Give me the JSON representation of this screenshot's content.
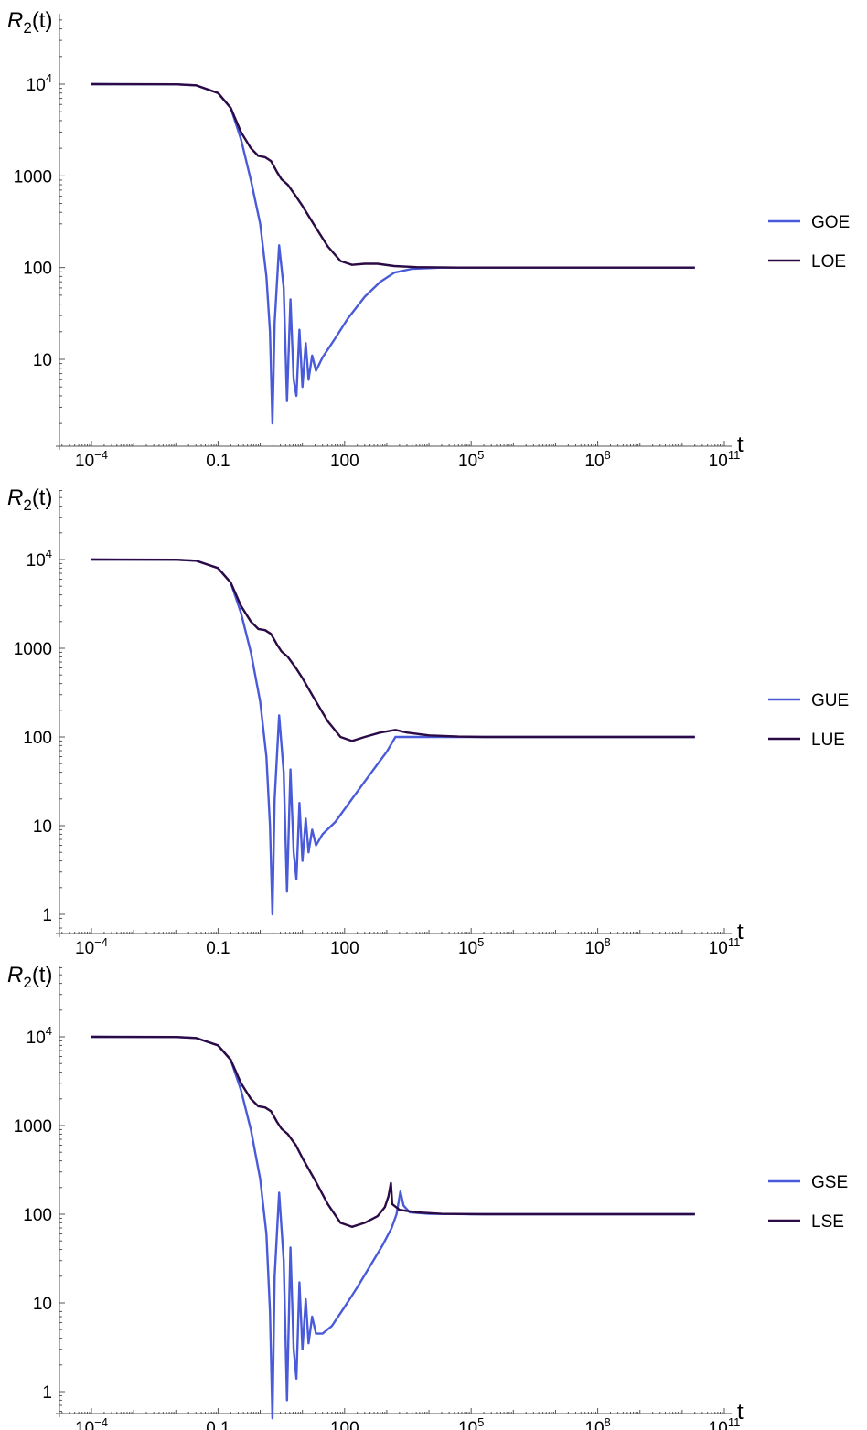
{
  "colors": {
    "g_series": "#4a5bd9",
    "l_series": "#2b0a45",
    "axis": "#555555"
  },
  "chart_data": [
    {
      "type": "line",
      "scale": {
        "x": "log",
        "y": "log"
      },
      "ylabel": "R2(t)",
      "ylabel_parts": {
        "letter": "R",
        "sub": "2",
        "arg": "(t)"
      },
      "xlabel": "t",
      "x_ticks": [
        {
          "value": 0.0001,
          "base": "10",
          "exp": "−4"
        },
        {
          "value": 0.1,
          "text": "0.1"
        },
        {
          "value": 100,
          "text": "100"
        },
        {
          "value": 100000,
          "base": "10",
          "exp": "5"
        },
        {
          "value": 100000000,
          "base": "10",
          "exp": "8"
        },
        {
          "value": 100000000000,
          "base": "10",
          "exp": "11"
        }
      ],
      "y_ticks": [
        {
          "value": 10,
          "text": "10"
        },
        {
          "value": 100,
          "text": "100"
        },
        {
          "value": 1000,
          "text": "1000"
        },
        {
          "value": 10000,
          "base": "10",
          "exp": "4"
        }
      ],
      "xlim": [
        2e-05,
        100000000000
      ],
      "ylim": [
        1.6,
        25000
      ],
      "legend_position": "right",
      "series": [
        {
          "name": "GOE",
          "color": "#4a5bd9",
          "points": [
            [
              0.0001,
              10000
            ],
            [
              0.01,
              9950
            ],
            [
              0.03,
              9700
            ],
            [
              0.1,
              8000
            ],
            [
              0.2,
              5500
            ],
            [
              0.35,
              2500
            ],
            [
              0.6,
              900
            ],
            [
              1.0,
              300
            ],
            [
              1.4,
              80
            ],
            [
              1.7,
              20
            ],
            [
              1.95,
              2
            ],
            [
              2.2,
              25
            ],
            [
              2.8,
              175
            ],
            [
              3.6,
              60
            ],
            [
              4.3,
              3.5
            ],
            [
              5.2,
              45
            ],
            [
              6.2,
              6
            ],
            [
              7.2,
              4
            ],
            [
              8.5,
              21
            ],
            [
              10,
              5
            ],
            [
              12,
              15
            ],
            [
              14,
              6
            ],
            [
              17,
              11
            ],
            [
              21,
              7.5
            ],
            [
              30,
              10.5
            ],
            [
              60,
              17
            ],
            [
              120,
              28
            ],
            [
              300,
              48
            ],
            [
              700,
              70
            ],
            [
              1500,
              88
            ],
            [
              4000,
              97
            ],
            [
              20000,
              100
            ],
            [
              1000000,
              100
            ],
            [
              20000000000,
              100
            ]
          ]
        },
        {
          "name": "LOE",
          "color": "#2b0a45",
          "points": [
            [
              0.0001,
              10000
            ],
            [
              0.01,
              9950
            ],
            [
              0.03,
              9700
            ],
            [
              0.1,
              8000
            ],
            [
              0.2,
              5500
            ],
            [
              0.35,
              3000
            ],
            [
              0.6,
              2000
            ],
            [
              0.9,
              1650
            ],
            [
              1.3,
              1600
            ],
            [
              1.8,
              1450
            ],
            [
              2.5,
              1100
            ],
            [
              3.2,
              920
            ],
            [
              4.5,
              800
            ],
            [
              7,
              600
            ],
            [
              10,
              470
            ],
            [
              20,
              280
            ],
            [
              40,
              170
            ],
            [
              80,
              118
            ],
            [
              150,
              107
            ],
            [
              300,
              110
            ],
            [
              600,
              110
            ],
            [
              1500,
              104
            ],
            [
              5000,
              101
            ],
            [
              50000,
              100
            ],
            [
              20000000000,
              100
            ]
          ]
        }
      ]
    },
    {
      "type": "line",
      "scale": {
        "x": "log",
        "y": "log"
      },
      "ylabel": "R2(t)",
      "ylabel_parts": {
        "letter": "R",
        "sub": "2",
        "arg": "(t)"
      },
      "xlabel": "t",
      "x_ticks": [
        {
          "value": 0.0001,
          "base": "10",
          "exp": "−4"
        },
        {
          "value": 0.1,
          "text": "0.1"
        },
        {
          "value": 100,
          "text": "100"
        },
        {
          "value": 100000,
          "base": "10",
          "exp": "5"
        },
        {
          "value": 100000000,
          "base": "10",
          "exp": "8"
        },
        {
          "value": 100000000000,
          "base": "10",
          "exp": "11"
        }
      ],
      "y_ticks": [
        {
          "value": 1,
          "text": "1"
        },
        {
          "value": 10,
          "text": "10"
        },
        {
          "value": 100,
          "text": "100"
        },
        {
          "value": 1000,
          "text": "1000"
        },
        {
          "value": 10000,
          "base": "10",
          "exp": "4"
        }
      ],
      "xlim": [
        2e-05,
        100000000000
      ],
      "ylim": [
        0.6,
        30000
      ],
      "legend_position": "right",
      "series": [
        {
          "name": "GUE",
          "color": "#4a5bd9",
          "points": [
            [
              0.0001,
              10000
            ],
            [
              0.01,
              9950
            ],
            [
              0.03,
              9700
            ],
            [
              0.1,
              8000
            ],
            [
              0.2,
              5500
            ],
            [
              0.35,
              2500
            ],
            [
              0.6,
              900
            ],
            [
              1.0,
              250
            ],
            [
              1.4,
              60
            ],
            [
              1.7,
              10
            ],
            [
              1.95,
              1
            ],
            [
              2.2,
              20
            ],
            [
              2.8,
              175
            ],
            [
              3.6,
              40
            ],
            [
              4.3,
              1.8
            ],
            [
              5.2,
              43
            ],
            [
              6.2,
              5
            ],
            [
              7.2,
              2.5
            ],
            [
              8.5,
              18
            ],
            [
              10,
              4
            ],
            [
              12,
              12
            ],
            [
              14,
              5
            ],
            [
              17,
              9
            ],
            [
              21,
              6
            ],
            [
              30,
              8
            ],
            [
              60,
              11
            ],
            [
              150,
              20
            ],
            [
              400,
              38
            ],
            [
              1000,
              68
            ],
            [
              1600,
              100
            ],
            [
              20000000000,
              100
            ]
          ]
        },
        {
          "name": "LUE",
          "color": "#2b0a45",
          "points": [
            [
              0.0001,
              10000
            ],
            [
              0.01,
              9950
            ],
            [
              0.03,
              9700
            ],
            [
              0.1,
              8000
            ],
            [
              0.2,
              5500
            ],
            [
              0.35,
              3000
            ],
            [
              0.6,
              2000
            ],
            [
              0.9,
              1650
            ],
            [
              1.3,
              1600
            ],
            [
              1.8,
              1450
            ],
            [
              2.5,
              1100
            ],
            [
              3.2,
              920
            ],
            [
              4.5,
              800
            ],
            [
              7,
              600
            ],
            [
              10,
              460
            ],
            [
              20,
              260
            ],
            [
              40,
              150
            ],
            [
              80,
              100
            ],
            [
              150,
              90
            ],
            [
              300,
              100
            ],
            [
              700,
              112
            ],
            [
              1600,
              120
            ],
            [
              3000,
              112
            ],
            [
              10000,
              104
            ],
            [
              50000,
              101
            ],
            [
              200000,
              100
            ],
            [
              20000000000,
              100
            ]
          ]
        }
      ]
    },
    {
      "type": "line",
      "scale": {
        "x": "log",
        "y": "log"
      },
      "ylabel": "R2(t)",
      "ylabel_parts": {
        "letter": "R",
        "sub": "2",
        "arg": "(t)"
      },
      "xlabel": "t",
      "x_ticks": [
        {
          "value": 0.0001,
          "base": "10",
          "exp": "−4"
        },
        {
          "value": 0.1,
          "text": "0.1"
        },
        {
          "value": 100,
          "text": "100"
        },
        {
          "value": 100000,
          "base": "10",
          "exp": "5"
        },
        {
          "value": 100000000,
          "base": "10",
          "exp": "8"
        },
        {
          "value": 100000000000,
          "base": "10",
          "exp": "11"
        }
      ],
      "y_ticks": [
        {
          "value": 1,
          "text": "1"
        },
        {
          "value": 10,
          "text": "10"
        },
        {
          "value": 100,
          "text": "100"
        },
        {
          "value": 1000,
          "text": "1000"
        },
        {
          "value": 10000,
          "base": "10",
          "exp": "4"
        }
      ],
      "xlim": [
        2e-05,
        100000000000
      ],
      "ylim": [
        0.3,
        30000
      ],
      "legend_position": "right",
      "series": [
        {
          "name": "GSE",
          "color": "#4a5bd9",
          "points": [
            [
              0.0001,
              10000
            ],
            [
              0.01,
              9950
            ],
            [
              0.03,
              9700
            ],
            [
              0.1,
              8000
            ],
            [
              0.2,
              5500
            ],
            [
              0.35,
              2500
            ],
            [
              0.6,
              900
            ],
            [
              1.0,
              250
            ],
            [
              1.4,
              60
            ],
            [
              1.7,
              8
            ],
            [
              1.95,
              0.5
            ],
            [
              2.2,
              20
            ],
            [
              2.8,
              175
            ],
            [
              3.6,
              30
            ],
            [
              4.3,
              0.8
            ],
            [
              5.2,
              42
            ],
            [
              6.2,
              3
            ],
            [
              7.2,
              1.4
            ],
            [
              8.5,
              17
            ],
            [
              10,
              3
            ],
            [
              12,
              11
            ],
            [
              14,
              3.5
            ],
            [
              17,
              7
            ],
            [
              21,
              4.5
            ],
            [
              30,
              4.5
            ],
            [
              50,
              5.5
            ],
            [
              100,
              9
            ],
            [
              200,
              15
            ],
            [
              400,
              26
            ],
            [
              800,
              45
            ],
            [
              1300,
              70
            ],
            [
              1700,
              100
            ],
            [
              2100,
              180
            ],
            [
              2500,
              125
            ],
            [
              3500,
              105
            ],
            [
              10000,
              101
            ],
            [
              100000,
              100
            ],
            [
              20000000000,
              100
            ]
          ]
        },
        {
          "name": "LSE",
          "color": "#2b0a45",
          "points": [
            [
              0.0001,
              10000
            ],
            [
              0.01,
              9950
            ],
            [
              0.03,
              9700
            ],
            [
              0.1,
              8000
            ],
            [
              0.2,
              5500
            ],
            [
              0.35,
              3000
            ],
            [
              0.6,
              2000
            ],
            [
              0.9,
              1650
            ],
            [
              1.3,
              1600
            ],
            [
              1.8,
              1450
            ],
            [
              2.5,
              1100
            ],
            [
              3.2,
              920
            ],
            [
              4.5,
              800
            ],
            [
              7,
              600
            ],
            [
              10,
              430
            ],
            [
              20,
              240
            ],
            [
              40,
              130
            ],
            [
              80,
              80
            ],
            [
              150,
              72
            ],
            [
              300,
              80
            ],
            [
              600,
              95
            ],
            [
              900,
              120
            ],
            [
              1100,
              160
            ],
            [
              1250,
              225
            ],
            [
              1350,
              130
            ],
            [
              2000,
              112
            ],
            [
              5000,
              105
            ],
            [
              20000,
              101
            ],
            [
              200000,
              100
            ],
            [
              20000000000,
              100
            ]
          ]
        }
      ]
    }
  ]
}
